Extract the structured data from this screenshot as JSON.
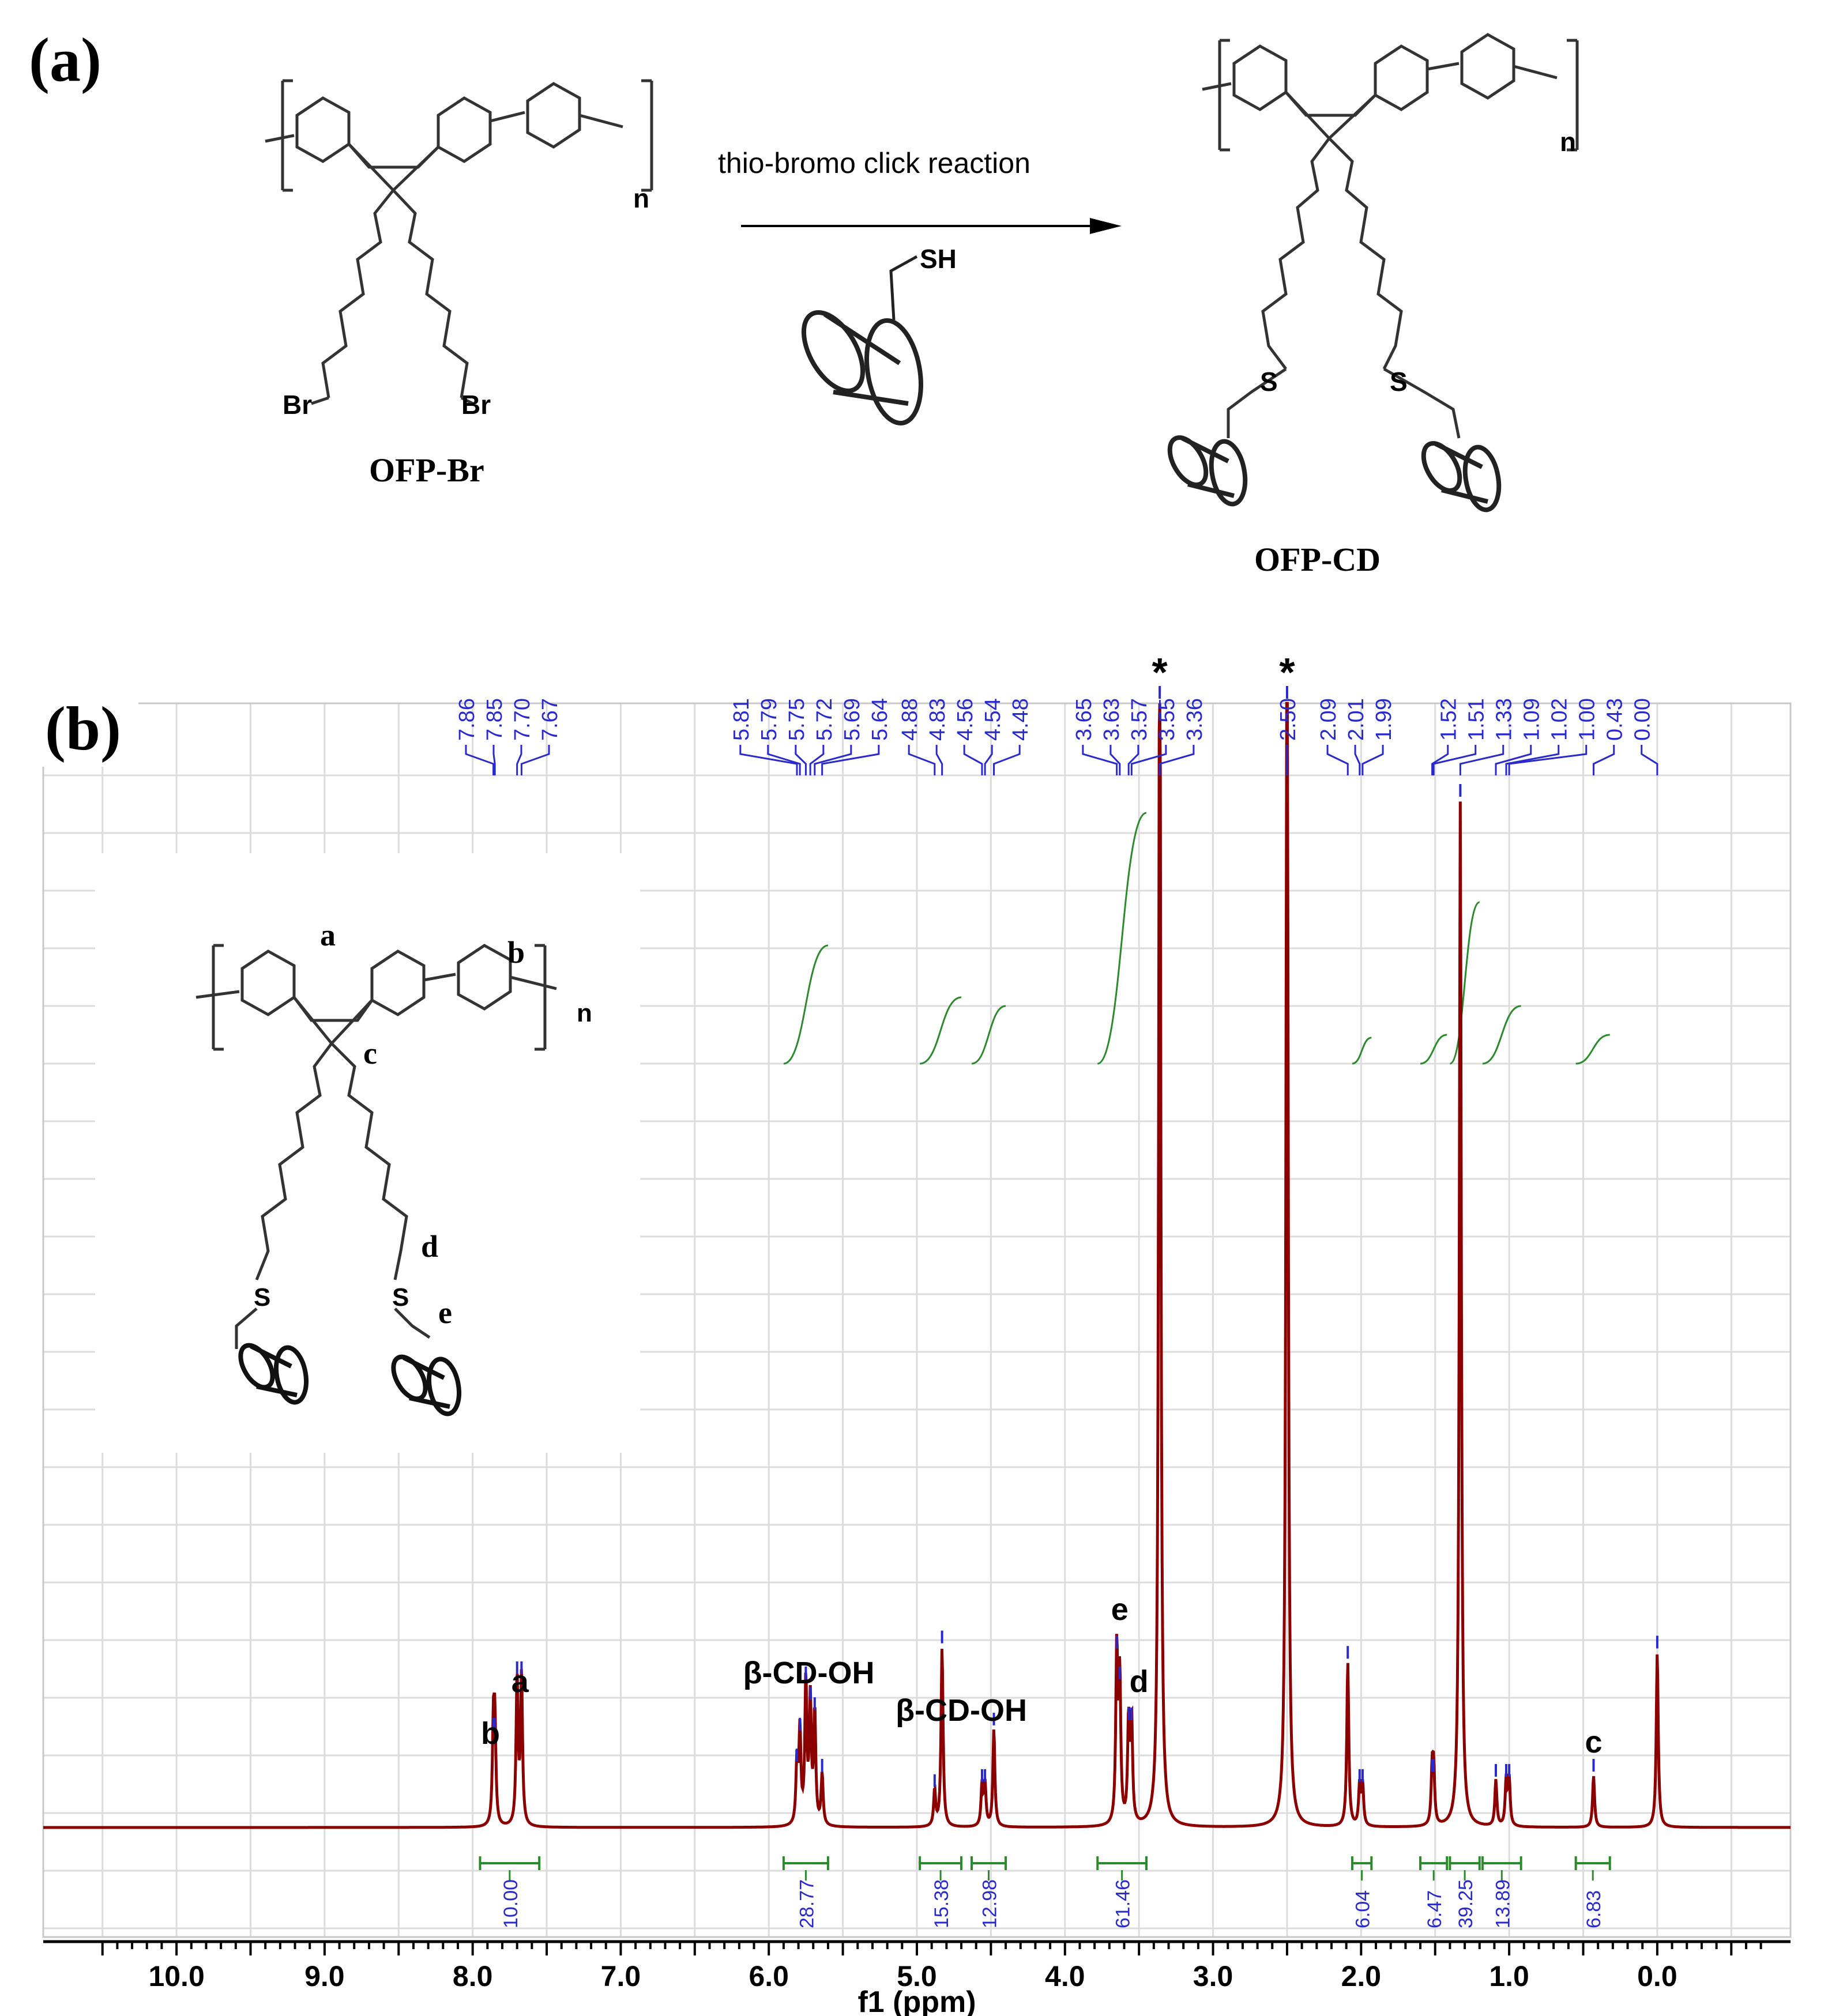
{
  "panel_a": {
    "label": "(a)",
    "reactant_name": "OFP-Br",
    "product_name": "OFP-CD",
    "arrow_label": "thio-bromo click reaction",
    "reagent_group": "SH",
    "repeat_unit": "n",
    "bromine_label": "Br",
    "sulfur_label": "S"
  },
  "panel_b": {
    "label": "(b)",
    "inset": {
      "proton_labels": [
        "a",
        "b",
        "c",
        "d",
        "e"
      ],
      "sulfur_label": "S",
      "repeat_unit": "n"
    }
  },
  "chart_data": {
    "type": "line",
    "xlabel": "f1 (ppm)",
    "ylabel": "",
    "xlim": [
      10.9,
      -0.9
    ],
    "x_ticks": [
      "10.0",
      "9.0",
      "8.0",
      "7.0",
      "6.0",
      "5.0",
      "4.0",
      "3.0",
      "2.0",
      "1.0",
      "0.0"
    ],
    "x_tick_values": [
      10,
      9,
      8,
      7,
      6,
      5,
      4,
      3,
      2,
      1,
      0
    ],
    "grid": true,
    "peak_labels": [
      "7.86",
      "7.85",
      "7.70",
      "7.67",
      "5.81",
      "5.79",
      "5.75",
      "5.72",
      "5.69",
      "5.64",
      "4.88",
      "4.83",
      "4.56",
      "4.54",
      "4.48",
      "3.65",
      "3.63",
      "3.57",
      "3.55",
      "3.36",
      "2.50",
      "2.09",
      "2.01",
      "1.99",
      "1.52",
      "1.51",
      "1.33",
      "1.09",
      "1.02",
      "1.00",
      "0.43",
      "0.00"
    ],
    "peaks": [
      {
        "ppm": 7.86,
        "height": 0.09
      },
      {
        "ppm": 7.85,
        "height": 0.09
      },
      {
        "ppm": 7.7,
        "height": 0.145
      },
      {
        "ppm": 7.67,
        "height": 0.145
      },
      {
        "ppm": 5.81,
        "height": 0.06
      },
      {
        "ppm": 5.79,
        "height": 0.09
      },
      {
        "ppm": 5.75,
        "height": 0.14
      },
      {
        "ppm": 5.72,
        "height": 0.12
      },
      {
        "ppm": 5.69,
        "height": 0.11
      },
      {
        "ppm": 5.64,
        "height": 0.05
      },
      {
        "ppm": 4.88,
        "height": 0.035
      },
      {
        "ppm": 4.83,
        "height": 0.175
      },
      {
        "ppm": 4.56,
        "height": 0.04
      },
      {
        "ppm": 4.54,
        "height": 0.04
      },
      {
        "ppm": 4.48,
        "height": 0.095
      },
      {
        "ppm": 3.65,
        "height": 0.17
      },
      {
        "ppm": 3.63,
        "height": 0.14
      },
      {
        "ppm": 3.57,
        "height": 0.1
      },
      {
        "ppm": 3.55,
        "height": 0.1
      },
      {
        "ppm": 3.36,
        "height": 1.3
      },
      {
        "ppm": 2.5,
        "height": 1.3
      },
      {
        "ppm": 2.09,
        "height": 0.16
      },
      {
        "ppm": 2.01,
        "height": 0.04
      },
      {
        "ppm": 1.99,
        "height": 0.04
      },
      {
        "ppm": 1.52,
        "height": 0.05
      },
      {
        "ppm": 1.51,
        "height": 0.05
      },
      {
        "ppm": 1.33,
        "height": 1.0
      },
      {
        "ppm": 1.09,
        "height": 0.045
      },
      {
        "ppm": 1.02,
        "height": 0.045
      },
      {
        "ppm": 1.0,
        "height": 0.045
      },
      {
        "ppm": 0.43,
        "height": 0.05
      },
      {
        "ppm": 0.0,
        "height": 0.17
      }
    ],
    "integrals": [
      {
        "from": 7.95,
        "to": 7.55,
        "value": "10.00"
      },
      {
        "from": 5.9,
        "to": 5.6,
        "value": "28.77"
      },
      {
        "from": 4.98,
        "to": 4.7,
        "value": "15.38"
      },
      {
        "from": 4.63,
        "to": 4.4,
        "value": "12.98"
      },
      {
        "from": 3.78,
        "to": 3.45,
        "value": "61.46"
      },
      {
        "from": 2.06,
        "to": 1.93,
        "value": "6.04"
      },
      {
        "from": 1.6,
        "to": 1.42,
        "value": "6.47"
      },
      {
        "from": 1.4,
        "to": 1.2,
        "value": "39.25"
      },
      {
        "from": 1.18,
        "to": 0.92,
        "value": "13.89"
      },
      {
        "from": 0.55,
        "to": 0.32,
        "value": "6.83"
      }
    ],
    "annotations": [
      {
        "text": "b",
        "ppm": 7.88
      },
      {
        "text": "a",
        "ppm": 7.68
      },
      {
        "text": "β-CD-OH",
        "ppm": 5.73
      },
      {
        "text": "β-CD-OH",
        "ppm": 4.7
      },
      {
        "text": "e",
        "ppm": 3.63
      },
      {
        "text": "d",
        "ppm": 3.5
      },
      {
        "text": "*",
        "ppm": 3.36
      },
      {
        "text": "*",
        "ppm": 2.5
      },
      {
        "text": "c",
        "ppm": 0.43
      }
    ]
  }
}
